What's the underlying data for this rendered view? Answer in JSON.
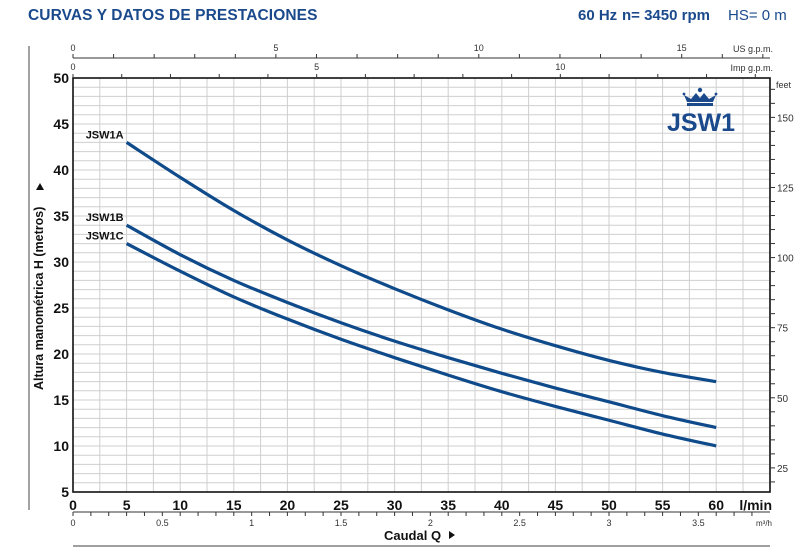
{
  "header": {
    "title": "CURVAS Y DATOS DE PRESTACIONES",
    "frequency": "60 Hz",
    "speed": "n= 3450 rpm",
    "suction_height": "HS= 0 m"
  },
  "logo": {
    "text": "JSW1",
    "icon": "crown-icon"
  },
  "chart_data": {
    "type": "line",
    "title": "CURVAS Y DATOS DE PRESTACIONES",
    "subtitle": "60 Hz  n= 3450 rpm  HS= 0 m",
    "xlabel": "Caudal Q",
    "ylabel": "Altura manométrica H (metros)",
    "x_unit": "l/min",
    "xlim": [
      0,
      65
    ],
    "ylim": [
      5,
      50
    ],
    "grid": true,
    "legend_position": "inline-labels-left",
    "x_ticks": [
      0,
      5,
      10,
      15,
      20,
      25,
      30,
      35,
      40,
      45,
      50,
      55,
      60
    ],
    "y_ticks": [
      5,
      10,
      15,
      20,
      25,
      30,
      35,
      40,
      45,
      50
    ],
    "secondary_axes": {
      "top_us_gpm": {
        "label": "US g.p.m.",
        "ticks": [
          0,
          5,
          10,
          15
        ]
      },
      "top_imp_gpm": {
        "label": "Imp g.p.m.",
        "ticks": [
          0,
          5,
          10
        ]
      },
      "bottom_m3h": {
        "label": "m³/h",
        "ticks": [
          0,
          0.5,
          1,
          1.5,
          2,
          2.5,
          3,
          3.5
        ]
      },
      "right_feet": {
        "label": "feet",
        "ticks": [
          25,
          50,
          75,
          100,
          125,
          150
        ]
      }
    },
    "x": [
      5,
      10,
      15,
      20,
      25,
      30,
      35,
      40,
      45,
      50,
      55,
      60
    ],
    "series": [
      {
        "name": "JSW1A",
        "values": [
          43,
          39.2,
          35.6,
          32.4,
          29.6,
          27.1,
          24.8,
          22.7,
          20.9,
          19.3,
          18,
          17
        ]
      },
      {
        "name": "JSW1B",
        "values": [
          34,
          30.8,
          28,
          25.6,
          23.4,
          21.4,
          19.6,
          17.9,
          16.3,
          14.8,
          13.3,
          12
        ]
      },
      {
        "name": "JSW1C",
        "values": [
          32,
          29,
          26.2,
          23.8,
          21.6,
          19.6,
          17.7,
          15.9,
          14.3,
          12.8,
          11.3,
          10
        ]
      }
    ],
    "line_color": "#0f4a8a"
  },
  "labels": {
    "us_gpm": "US g.p.m.",
    "imp_gpm": "Imp g.p.m.",
    "feet": "feet",
    "lmin": "l/min",
    "m3h": "m³/h",
    "caudal": "Caudal  Q",
    "altura": "Altura manométrica H (metros)"
  }
}
